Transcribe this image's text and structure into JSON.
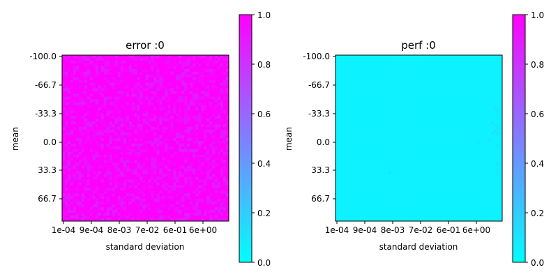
{
  "colors": {
    "cmap_low": "#00ffff",
    "cmap_high": "#ff00ff"
  },
  "chart_data": [
    {
      "type": "heatmap",
      "title": "error :0",
      "xlabel": "standard deviation",
      "ylabel": "mean",
      "x_tick_labels": [
        "1e-04",
        "9e-04",
        "8e-03",
        "7e-02",
        "6e-01",
        "6e+00"
      ],
      "y_tick_labels": [
        "-100.0",
        "-66.7",
        "-33.3",
        "0.0",
        "33.3",
        "66.7"
      ],
      "grid_size": [
        60,
        60
      ],
      "base_value": 0.97,
      "noise_range": [
        0.86,
        1.0
      ],
      "hot_cells": [],
      "colorbar": {
        "min": 0.0,
        "max": 1.0,
        "tick_labels": [
          "0.0",
          "0.2",
          "0.4",
          "0.6",
          "0.8",
          "1.0"
        ]
      }
    },
    {
      "type": "heatmap",
      "title": "perf :0",
      "xlabel": "standard deviation",
      "ylabel": "mean",
      "x_tick_labels": [
        "1e-04",
        "9e-04",
        "8e-03",
        "7e-02",
        "6e-01",
        "6e+00"
      ],
      "y_tick_labels": [
        "-100.0",
        "-66.7",
        "-33.3",
        "0.0",
        "33.3",
        "66.7"
      ],
      "grid_size": [
        60,
        60
      ],
      "base_value": 0.05,
      "noise_range": [
        0.05,
        0.05
      ],
      "hot_cells": [
        {
          "col": 57,
          "row": 19,
          "value": 0.12
        },
        {
          "col": 58,
          "row": 20,
          "value": 0.1
        },
        {
          "col": 56,
          "row": 24,
          "value": 0.12
        },
        {
          "col": 57,
          "row": 25,
          "value": 0.1
        },
        {
          "col": 58,
          "row": 26,
          "value": 0.14
        },
        {
          "col": 57,
          "row": 27,
          "value": 0.12
        },
        {
          "col": 56,
          "row": 28,
          "value": 0.1
        },
        {
          "col": 58,
          "row": 28,
          "value": 0.12
        },
        {
          "col": 55,
          "row": 30,
          "value": 0.1
        },
        {
          "col": 51,
          "row": 31,
          "value": 0.1
        },
        {
          "col": 58,
          "row": 32,
          "value": 0.1
        },
        {
          "col": 58,
          "row": 39,
          "value": 0.1
        },
        {
          "col": 19,
          "row": 42,
          "value": 0.14
        },
        {
          "col": 58,
          "row": 43,
          "value": 0.1
        }
      ],
      "colorbar": {
        "min": 0.0,
        "max": 1.0,
        "tick_labels": [
          "0.0",
          "0.2",
          "0.4",
          "0.6",
          "0.8",
          "1.0"
        ]
      }
    }
  ]
}
